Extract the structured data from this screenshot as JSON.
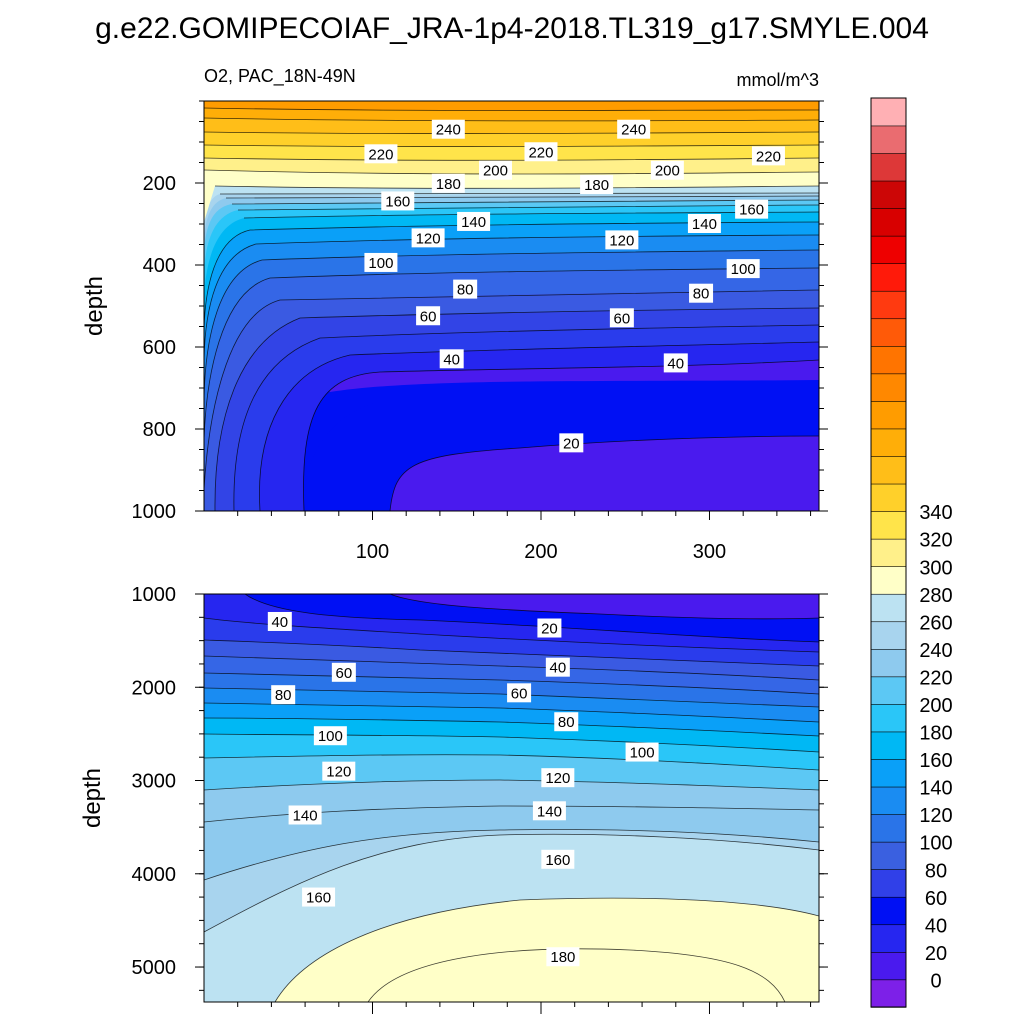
{
  "title": "g.e22.GOMIPECOIAF_JRA-1p4-2018.TL319_g17.SMYLE.004",
  "chart_data": [
    {
      "type": "contour",
      "panel": "upper",
      "left_label": "O2, PAC_18N-49N",
      "right_label": "mmol/m^3",
      "xlabel": "",
      "ylabel": "depth",
      "x_ticks": [
        100,
        200,
        300
      ],
      "y_ticks": [
        200,
        400,
        600,
        800,
        1000
      ],
      "xlim": [
        0,
        365
      ],
      "ylim": [
        1000,
        0
      ],
      "contour_labels": [
        {
          "text": "240",
          "x": 145,
          "y": 70
        },
        {
          "text": "240",
          "x": 255,
          "y": 70
        },
        {
          "text": "220",
          "x": 105,
          "y": 130
        },
        {
          "text": "220",
          "x": 200,
          "y": 125
        },
        {
          "text": "220",
          "x": 335,
          "y": 135
        },
        {
          "text": "200",
          "x": 173,
          "y": 170
        },
        {
          "text": "200",
          "x": 275,
          "y": 170
        },
        {
          "text": "180",
          "x": 145,
          "y": 202
        },
        {
          "text": "180",
          "x": 233,
          "y": 205
        },
        {
          "text": "160",
          "x": 115,
          "y": 245
        },
        {
          "text": "160",
          "x": 325,
          "y": 265
        },
        {
          "text": "140",
          "x": 160,
          "y": 295
        },
        {
          "text": "140",
          "x": 297,
          "y": 300
        },
        {
          "text": "120",
          "x": 133,
          "y": 335
        },
        {
          "text": "120",
          "x": 248,
          "y": 340
        },
        {
          "text": "100",
          "x": 105,
          "y": 395
        },
        {
          "text": "100",
          "x": 320,
          "y": 410
        },
        {
          "text": "80",
          "x": 155,
          "y": 460
        },
        {
          "text": "80",
          "x": 295,
          "y": 470
        },
        {
          "text": "60",
          "x": 133,
          "y": 525
        },
        {
          "text": "60",
          "x": 248,
          "y": 530
        },
        {
          "text": "40",
          "x": 147,
          "y": 630
        },
        {
          "text": "40",
          "x": 280,
          "y": 640
        },
        {
          "text": "20",
          "x": 218,
          "y": 835
        }
      ]
    },
    {
      "type": "contour",
      "panel": "lower",
      "xlabel": "",
      "ylabel": "depth",
      "y_ticks": [
        1000,
        2000,
        3000,
        4000,
        5000
      ],
      "xlim": [
        0,
        365
      ],
      "ylim": [
        5375,
        1000
      ],
      "contour_labels": [
        {
          "text": "40",
          "x": 45,
          "y": 1300
        },
        {
          "text": "20",
          "x": 205,
          "y": 1370
        },
        {
          "text": "60",
          "x": 83,
          "y": 1845
        },
        {
          "text": "40",
          "x": 210,
          "y": 1790
        },
        {
          "text": "80",
          "x": 47,
          "y": 2085
        },
        {
          "text": "60",
          "x": 187,
          "y": 2065
        },
        {
          "text": "80",
          "x": 215,
          "y": 2375
        },
        {
          "text": "100",
          "x": 75,
          "y": 2525
        },
        {
          "text": "100",
          "x": 260,
          "y": 2700
        },
        {
          "text": "120",
          "x": 80,
          "y": 2905
        },
        {
          "text": "120",
          "x": 210,
          "y": 2975
        },
        {
          "text": "140",
          "x": 60,
          "y": 3375
        },
        {
          "text": "140",
          "x": 205,
          "y": 3330
        },
        {
          "text": "160",
          "x": 68,
          "y": 4255
        },
        {
          "text": "160",
          "x": 210,
          "y": 3850
        },
        {
          "text": "180",
          "x": 213,
          "y": 4895
        }
      ]
    }
  ],
  "colorbar": {
    "tick_labels": [
      "0",
      "20",
      "40",
      "60",
      "80",
      "100",
      "120",
      "140",
      "160",
      "180",
      "200",
      "220",
      "240",
      "260",
      "280",
      "300",
      "320",
      "340"
    ],
    "colors": [
      "#7d20e8",
      "#4a1aee",
      "#2626f0",
      "#0010f4",
      "#3040e8",
      "#3a60e0",
      "#2a74e8",
      "#1a8cf2",
      "#0aa0f8",
      "#00b8f4",
      "#2ac6f8",
      "#5cc8f4",
      "#8ecaee",
      "#a8d4ee",
      "#bce2f2",
      "#ffffc8",
      "#fff08a",
      "#ffe44a",
      "#ffd02a",
      "#ffbe18",
      "#ffae08",
      "#ff9c00",
      "#ff8800",
      "#ff7400",
      "#ff5a08",
      "#ff3a10",
      "#ff1a0a",
      "#ee0000",
      "#d80000",
      "#cc0606",
      "#dd3838",
      "#ea6c70",
      "#ffb0b4"
    ]
  },
  "colors": {
    "deep_purple": "#4a1aee",
    "deep_blue": "#0010f4",
    "mid_blue": "#1a8cf2",
    "light_blue": "#bce2f2",
    "pale_yellow": "#ffffc8",
    "yellow": "#fff08a",
    "orange": "#ff9c00"
  }
}
